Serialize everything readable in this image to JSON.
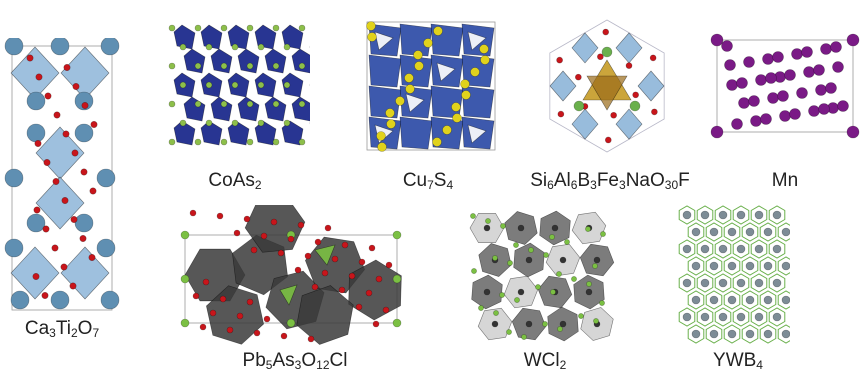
{
  "structures": [
    {
      "id": "ca3ti2o7",
      "formula": "Ca3Ti2O7",
      "parts": [
        [
          "Ca",
          ""
        ],
        [
          "3",
          "sub"
        ],
        [
          "Ti",
          ""
        ],
        [
          "2",
          "sub"
        ],
        [
          "O",
          ""
        ],
        [
          "7",
          "sub"
        ]
      ]
    },
    {
      "id": "coas2",
      "formula": "CoAs2",
      "parts": [
        [
          "CoAs",
          ""
        ],
        [
          "2",
          "sub"
        ]
      ]
    },
    {
      "id": "cu7s4",
      "formula": "Cu7S4",
      "parts": [
        [
          "Cu",
          ""
        ],
        [
          "7",
          "sub"
        ],
        [
          "S",
          ""
        ],
        [
          "4",
          "sub"
        ]
      ]
    },
    {
      "id": "si6al6b3fe3nao30f",
      "formula": "Si6Al6B3Fe3NaO30F",
      "parts": [
        [
          "Si",
          ""
        ],
        [
          "6",
          "sub"
        ],
        [
          "Al",
          ""
        ],
        [
          "6",
          "sub"
        ],
        [
          "B",
          ""
        ],
        [
          "3",
          "sub"
        ],
        [
          "Fe",
          ""
        ],
        [
          "3",
          "sub"
        ],
        [
          "NaO",
          ""
        ],
        [
          "30",
          "sub"
        ],
        [
          "F",
          ""
        ]
      ]
    },
    {
      "id": "mn",
      "formula": "Mn",
      "parts": [
        [
          "Mn",
          ""
        ]
      ]
    },
    {
      "id": "pb5as3o12cl",
      "formula": "Pb5As3O12Cl",
      "parts": [
        [
          "Pb",
          ""
        ],
        [
          "5",
          "sub"
        ],
        [
          "As",
          ""
        ],
        [
          "3",
          "sub"
        ],
        [
          "O",
          ""
        ],
        [
          "12",
          "sub"
        ],
        [
          "Cl",
          ""
        ]
      ]
    },
    {
      "id": "wcl2",
      "formula": "WCl2",
      "parts": [
        [
          "WCl",
          ""
        ],
        [
          "2",
          "sub"
        ]
      ]
    },
    {
      "id": "ywb4",
      "formula": "YWB4",
      "parts": [
        [
          "YWB",
          ""
        ],
        [
          "4",
          "sub"
        ]
      ]
    }
  ],
  "colors": {
    "oxygen": "#c8151b",
    "calcium": "#5f8fb2",
    "ti_octahedron": "#8db5d8",
    "cobalt_poly": "#1c2a8c",
    "arsenic": "#8dbf4a",
    "cu_poly": "#2c4ba6",
    "sulfur": "#e0d21c",
    "mn": "#7a1a86",
    "pb_poly": "#3a3a3a",
    "chlorine": "#7bc043",
    "w_poly": "#6a6a6a",
    "boron": "#6ab04c",
    "y_atom": "#7d8c96",
    "fe_poly": "#c8a030",
    "cell_line": "#9a9a9a"
  }
}
